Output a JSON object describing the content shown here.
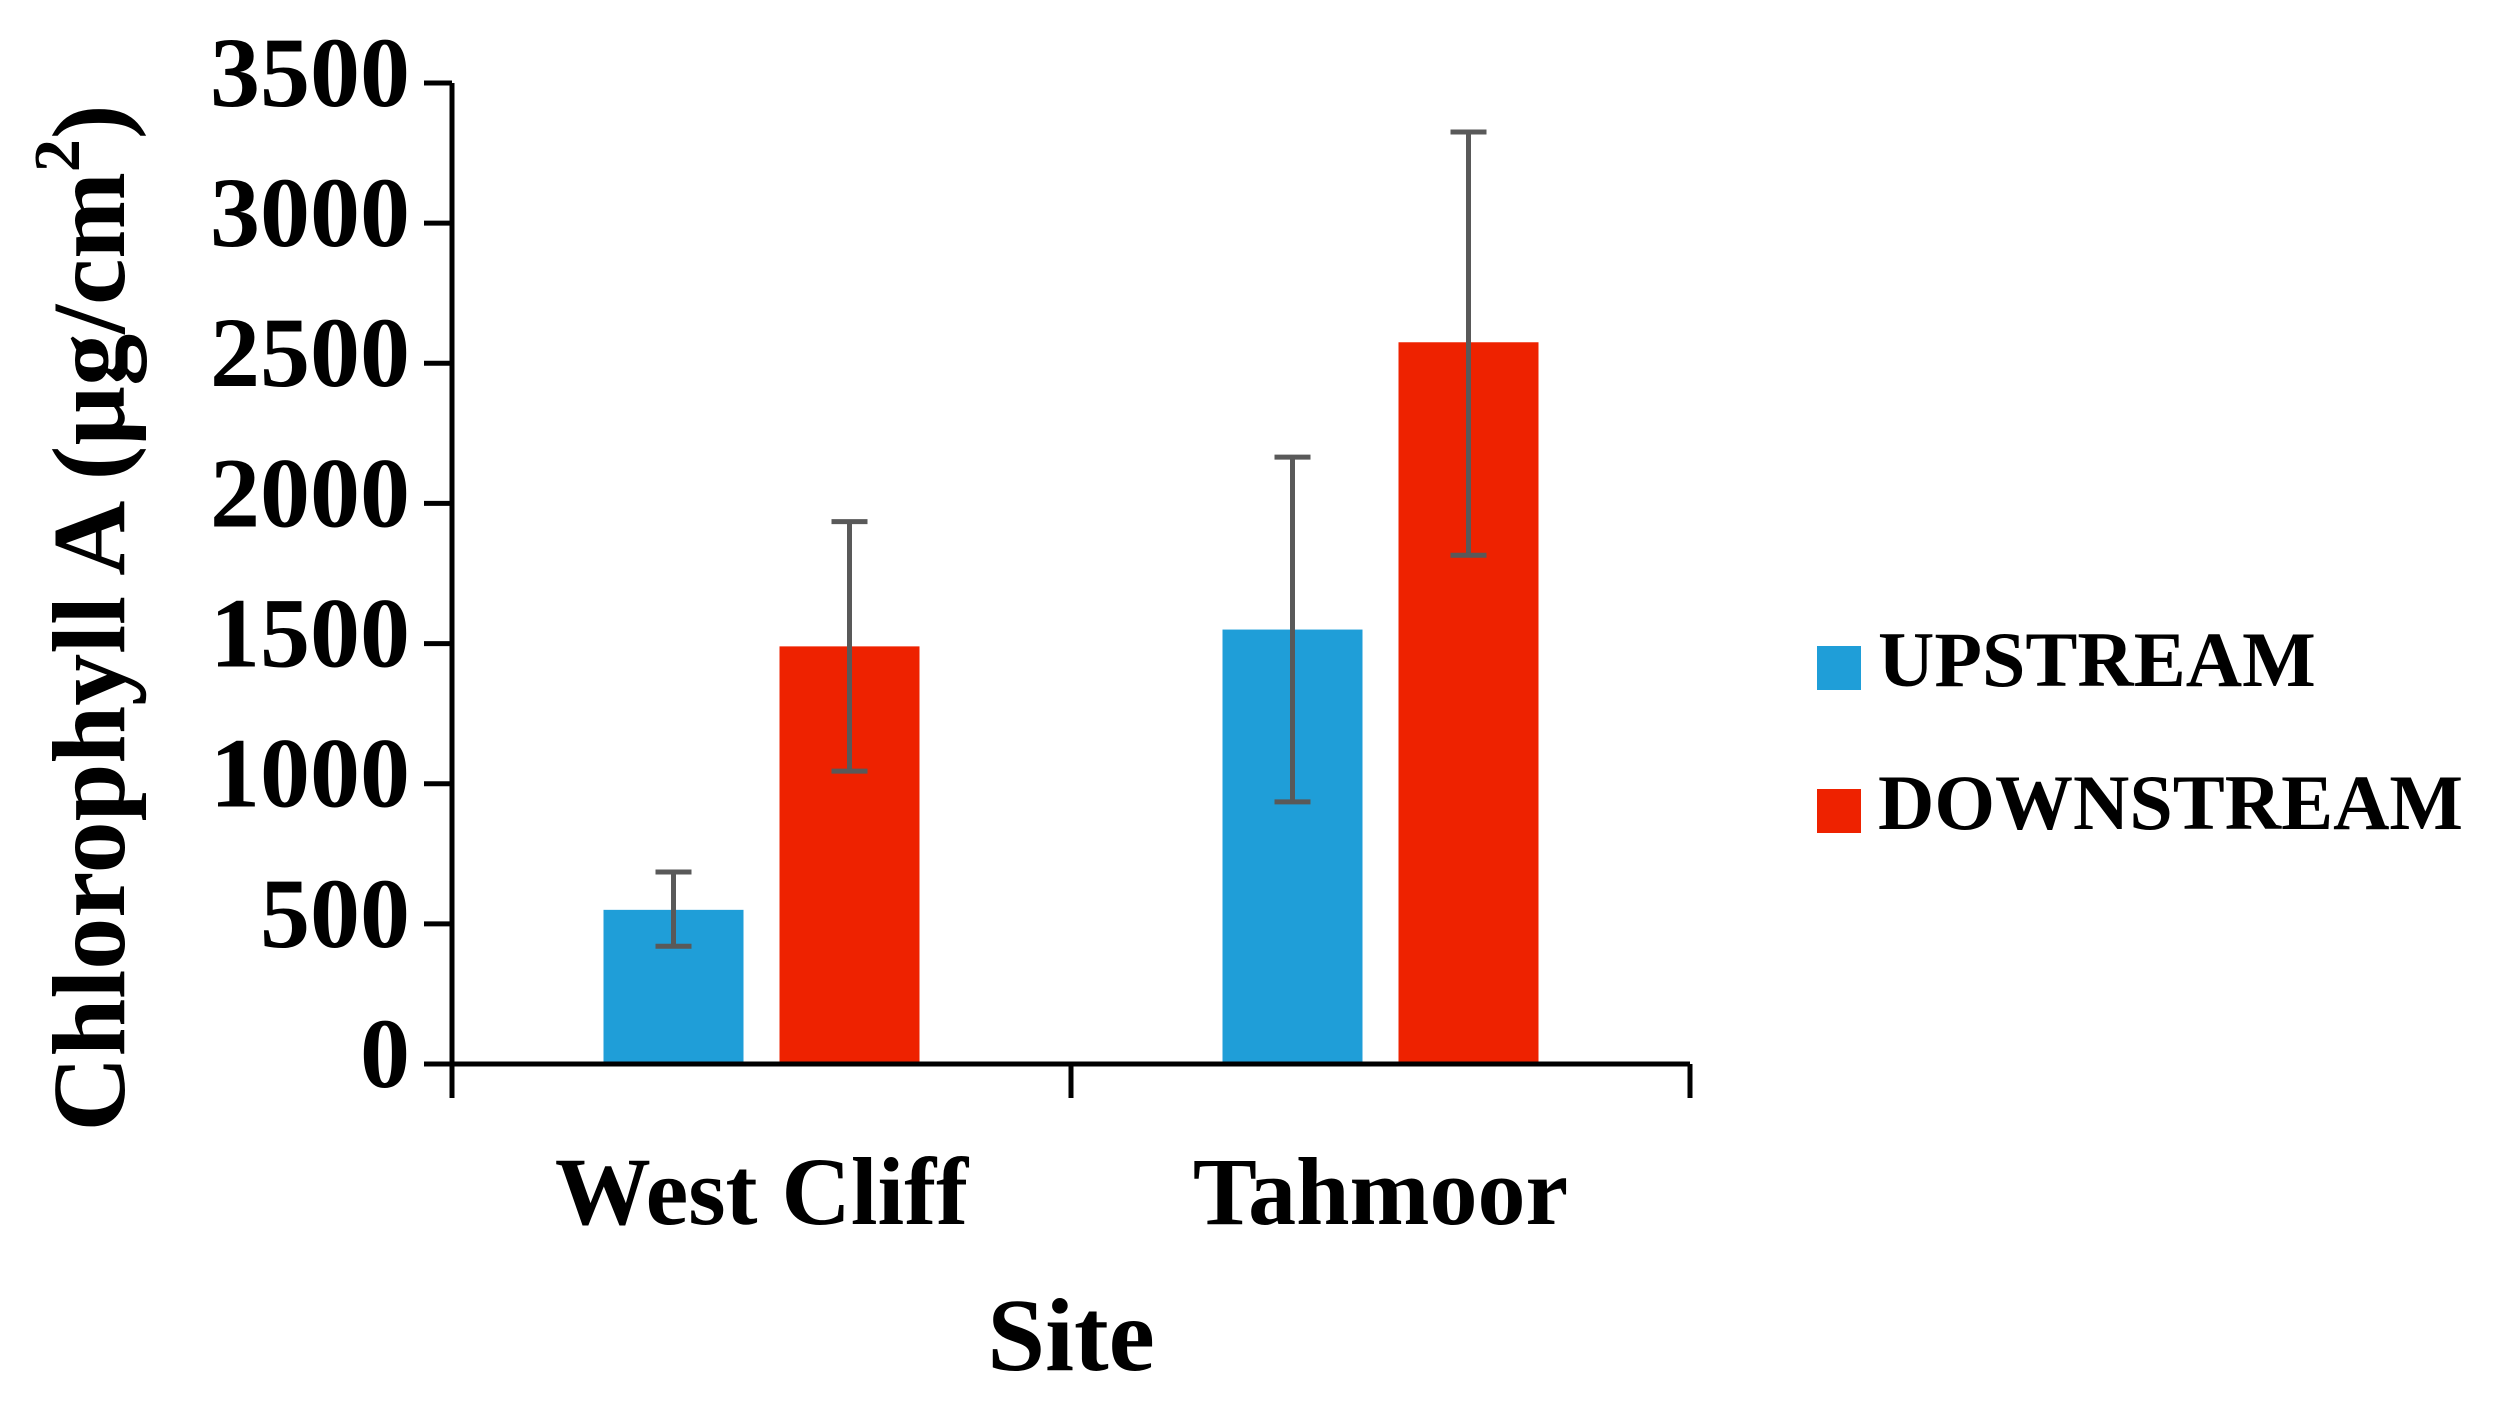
{
  "chart_data": {
    "type": "bar",
    "title": "",
    "xlabel": "Site",
    "ylabel": "Chlorophyll A (µg/cm²)",
    "ylim": [
      0,
      3500
    ],
    "yticks": [
      0,
      500,
      1000,
      1500,
      2000,
      2500,
      3000,
      3500
    ],
    "ytick_labels": [
      "0",
      "500",
      "1000",
      "1500",
      "2000",
      "2500",
      "3000",
      "3500"
    ],
    "categories": [
      "West Cliff",
      "Tahmoor"
    ],
    "series": [
      {
        "name": "UPSTREAM",
        "color": "#1f9ed8",
        "values": [
          550,
          1550
        ],
        "error_low": [
          420,
          935
        ],
        "error_high": [
          685,
          2165
        ]
      },
      {
        "name": "DOWNSTREAM",
        "color": "#ee2200",
        "values": [
          1490,
          2575
        ],
        "error_low": [
          1045,
          1815
        ],
        "error_high": [
          1935,
          3325
        ]
      }
    ],
    "grid": false,
    "legend_position": "right",
    "error_bar_color": "#595959"
  }
}
